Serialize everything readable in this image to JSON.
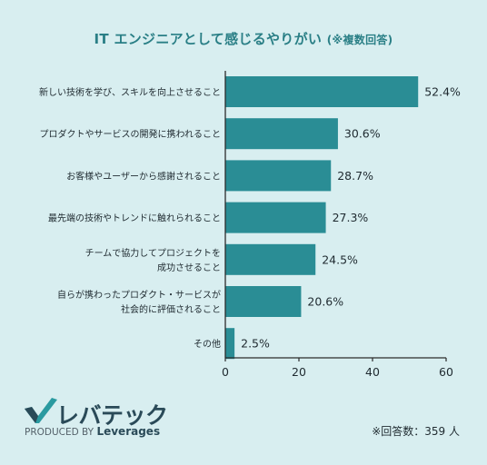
{
  "title": "IT エンジニアとして感じるやりがい",
  "subtitle": "(※複数回答)",
  "brand": {
    "logo_text": "レバテック",
    "produced_by_prefix": "PRODUCED BY",
    "produced_by_name": "Leverages",
    "logo_color": "#2a4a58",
    "check_color": "#2a9aa0"
  },
  "footnote": "※回答数：359 人",
  "colors": {
    "bar": "#2a8d95",
    "background": "#d8eef0",
    "title": "#2a7f86"
  },
  "chart_data": {
    "type": "bar",
    "orientation": "horizontal",
    "categories": [
      [
        "新しい技術を学び、スキルを向上させること"
      ],
      [
        "プロダクトやサービスの開発に携われること"
      ],
      [
        "お客様やユーザーから感謝されること"
      ],
      [
        "最先端の技術やトレンドに触れられること"
      ],
      [
        "チームで協力してプロジェクトを",
        "成功させること"
      ],
      [
        "自らが携わったプロダクト・サービスが",
        "社会的に評価されること"
      ],
      [
        "その他"
      ]
    ],
    "values": [
      52.4,
      30.6,
      28.7,
      27.3,
      24.5,
      20.6,
      2.5
    ],
    "value_labels": [
      "52.4%",
      "30.6%",
      "28.7%",
      "27.3%",
      "24.5%",
      "20.6%",
      "2.5%"
    ],
    "xlim": [
      0,
      60
    ],
    "xticks": [
      0,
      20,
      40,
      60
    ],
    "xlabel": "",
    "ylabel": "",
    "grid": false,
    "legend": "none"
  }
}
